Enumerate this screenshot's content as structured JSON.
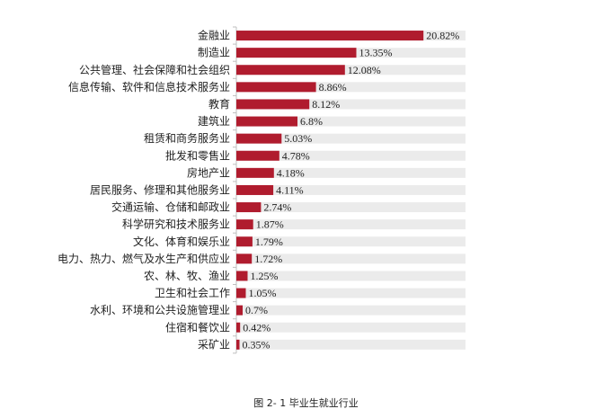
{
  "caption": "图 2- 1 毕业生就业行业",
  "chart_data": {
    "type": "bar",
    "orientation": "horizontal",
    "categories": [
      "金融业",
      "制造业",
      "公共管理、社会保障和社会组织",
      "信息传输、软件和信息技术服务业",
      "教育",
      "建筑业",
      "租赁和商务服务业",
      "批发和零售业",
      "房地产业",
      "居民服务、修理和其他服务业",
      "交通运输、仓储和邮政业",
      "科学研究和技术服务业",
      "文化、体育和娱乐业",
      "电力、热力、燃气及水生产和供应业",
      "农、林、牧、渔业",
      "卫生和社会工作",
      "水利、环境和公共设施管理业",
      "住宿和餐饮业",
      "采矿业"
    ],
    "values": [
      20.82,
      13.35,
      12.08,
      8.86,
      8.12,
      6.8,
      5.03,
      4.78,
      4.18,
      4.11,
      2.74,
      1.87,
      1.79,
      1.72,
      1.25,
      1.05,
      0.7,
      0.42,
      0.35
    ],
    "value_labels": [
      "20.82%",
      "13.35%",
      "12.08%",
      "8.86%",
      "8.12%",
      "6.8%",
      "5.03%",
      "4.78%",
      "4.18%",
      "4.11%",
      "2.74%",
      "1.87%",
      "1.79%",
      "1.72%",
      "1.25%",
      "1.05%",
      "0.7%",
      "0.42%",
      "0.35%"
    ],
    "xlim": [
      0,
      25.5
    ],
    "bar_color": "#b01c2e",
    "track_color": "#ebebeb",
    "axis_color": "#bfbfbf",
    "grid": false,
    "legend": "none"
  }
}
